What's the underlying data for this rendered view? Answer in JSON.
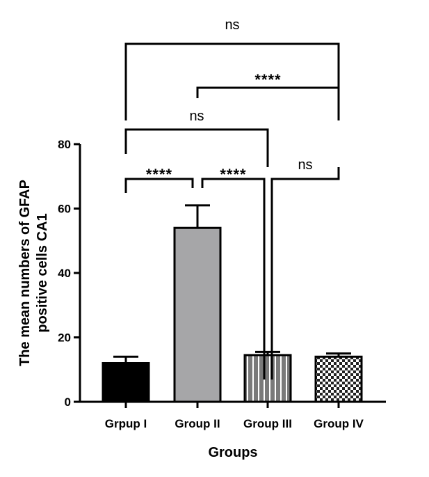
{
  "chart_data": {
    "type": "bar",
    "categories": [
      "Grpup I",
      "Group II",
      "Group III",
      "Group IV"
    ],
    "values": [
      12,
      54,
      14.5,
      14
    ],
    "errors": [
      2,
      7,
      1,
      1
    ],
    "fills": [
      "solid-black",
      "solid-gray",
      "vertical-stripes",
      "checkerboard"
    ],
    "colors": {
      "bar_black": "#000000",
      "bar_gray": "#a6a6a8",
      "stripe_bg": "#7a7a7a",
      "stripe_line": "#ffffff",
      "checker_dark": "#222222",
      "checker_light": "#ffffff"
    },
    "xlabel": "Groups",
    "ylabel_lines": [
      "The mean numbers of GFAP",
      "positive cells CA1"
    ],
    "ylim": [
      0,
      80
    ],
    "yticks": [
      "0",
      "20",
      "40",
      "60",
      "80"
    ],
    "comparisons": [
      {
        "from": 0,
        "to": 3,
        "label": "ns"
      },
      {
        "from": 1,
        "to": 3,
        "label": "****"
      },
      {
        "from": 0,
        "to": 2,
        "label": "ns"
      },
      {
        "from": 0,
        "to": 1,
        "label": "****"
      },
      {
        "from": 1,
        "to": 2,
        "label": "****"
      },
      {
        "from": 2,
        "to": 3,
        "label": "ns"
      }
    ]
  }
}
